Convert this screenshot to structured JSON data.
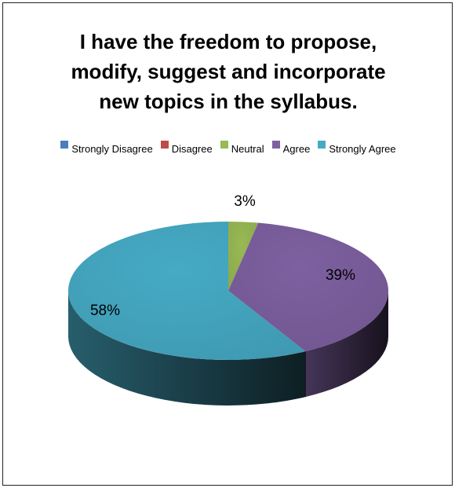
{
  "chart_data": {
    "type": "pie",
    "title": [
      "I have the freedom to propose,",
      "modify, suggest and incorporate",
      "new topics in the syllabus."
    ],
    "categories": [
      "Strongly Disagree",
      "Disagree",
      "Neutral",
      "Agree",
      "Strongly Agree"
    ],
    "values": [
      0,
      0,
      3,
      39,
      58
    ],
    "labels": [
      "",
      "",
      "3%",
      "39%",
      "58%"
    ],
    "colors": [
      "#4a7ebb",
      "#be4b48",
      "#98b954",
      "#7d60a0",
      "#46aac5"
    ],
    "legend_position": "top",
    "style": "3d"
  }
}
